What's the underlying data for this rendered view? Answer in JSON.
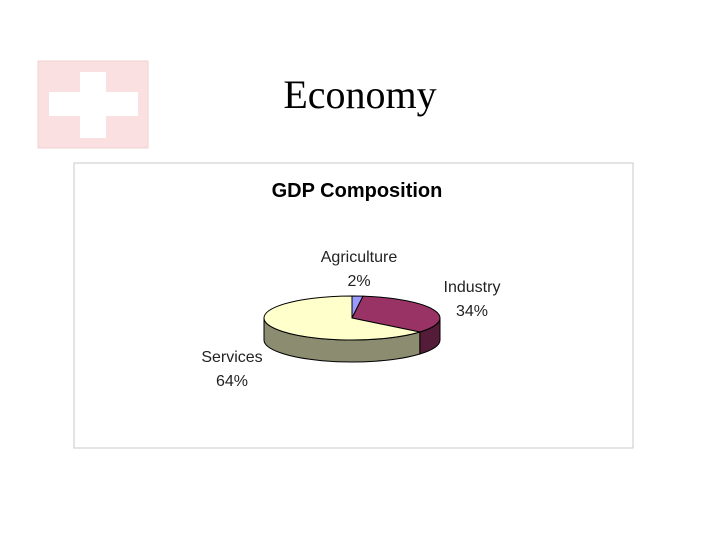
{
  "slide": {
    "title": "Economy"
  },
  "chart_data": {
    "type": "pie",
    "title": "GDP Composition",
    "categories": [
      "Agriculture",
      "Industry",
      "Services"
    ],
    "values": [
      2,
      34,
      64
    ],
    "value_labels": [
      "2%",
      "34%",
      "64%"
    ],
    "colors": [
      "#9999ff",
      "#993366",
      "#ffffcc"
    ]
  }
}
